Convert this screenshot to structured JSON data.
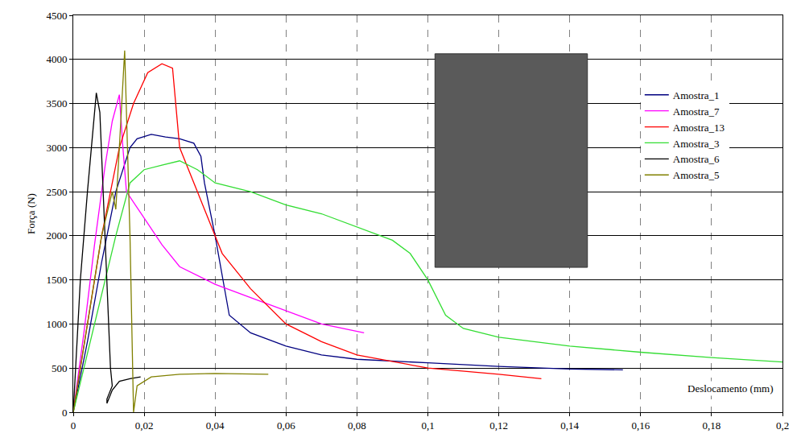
{
  "chart_data": {
    "type": "line",
    "x_label": "Deslocamento (mm)",
    "y_label": "Força (N)",
    "xlim": [
      0,
      0.2
    ],
    "ylim": [
      0,
      4500
    ],
    "xticks": [
      0,
      {
        "value": 0.02,
        "label": "0,02"
      },
      {
        "value": 0.04,
        "label": "0,04"
      },
      {
        "value": 0.06,
        "label": "0,06"
      },
      {
        "value": 0.08,
        "label": "0,08"
      },
      {
        "value": 0.1,
        "label": "0,1"
      },
      {
        "value": 0.12,
        "label": "0,12"
      },
      {
        "value": 0.14,
        "label": "0,14"
      },
      {
        "value": 0.16,
        "label": "0,16"
      },
      {
        "value": 0.18,
        "label": "0,18"
      },
      {
        "value": 0.2,
        "label": "0,2"
      }
    ],
    "yticks": [
      0,
      500,
      1000,
      1500,
      2000,
      2500,
      3000,
      3500,
      4000,
      4500
    ],
    "grid": true,
    "legend": "upper right",
    "series": [
      {
        "name": "Amostra_1",
        "color": "#000080",
        "x": [
          0,
          0.004,
          0.008,
          0.012,
          0.016,
          0.018,
          0.022,
          0.026,
          0.03,
          0.034,
          0.036,
          0.037,
          0.04,
          0.044,
          0.05,
          0.06,
          0.07,
          0.08,
          0.1,
          0.12,
          0.14,
          0.155
        ],
        "values": [
          0,
          800,
          1700,
          2500,
          3000,
          3100,
          3150,
          3120,
          3100,
          3050,
          2900,
          2600,
          2000,
          1100,
          900,
          750,
          650,
          600,
          560,
          520,
          490,
          480
        ]
      },
      {
        "name": "Amostra_7",
        "color": "#ff00ff",
        "x": [
          0,
          0.003,
          0.006,
          0.009,
          0.011,
          0.013,
          0.014,
          0.015,
          0.02,
          0.025,
          0.03,
          0.04,
          0.05,
          0.06,
          0.07,
          0.082
        ],
        "values": [
          0,
          900,
          1900,
          2800,
          3300,
          3600,
          3000,
          2500,
          2200,
          1900,
          1650,
          1450,
          1300,
          1150,
          1000,
          900
        ]
      },
      {
        "name": "Amostra_13",
        "color": "#ff0000",
        "x": [
          0,
          0.004,
          0.008,
          0.013,
          0.017,
          0.021,
          0.025,
          0.028,
          0.03,
          0.035,
          0.042,
          0.05,
          0.06,
          0.07,
          0.08,
          0.1,
          0.12,
          0.132
        ],
        "values": [
          0,
          1000,
          2000,
          3000,
          3500,
          3850,
          3950,
          3900,
          3000,
          2500,
          1800,
          1400,
          1000,
          800,
          650,
          500,
          430,
          380
        ]
      },
      {
        "name": "Amostra_3",
        "color": "#33dd33",
        "x": [
          0,
          0.006,
          0.012,
          0.016,
          0.02,
          0.025,
          0.03,
          0.035,
          0.04,
          0.05,
          0.06,
          0.07,
          0.08,
          0.09,
          0.095,
          0.1,
          0.105,
          0.11,
          0.12,
          0.14,
          0.16,
          0.18,
          0.2
        ],
        "values": [
          0,
          1000,
          2000,
          2600,
          2750,
          2800,
          2850,
          2750,
          2600,
          2500,
          2350,
          2250,
          2100,
          1950,
          1800,
          1500,
          1100,
          950,
          850,
          750,
          680,
          620,
          570
        ]
      },
      {
        "name": "Amostra_6",
        "color": "#000000",
        "x": [
          0,
          0.002,
          0.004,
          0.0065,
          0.0075,
          0.009,
          0.0105,
          0.011,
          0.0095,
          0.0095,
          0.011,
          0.013,
          0.016,
          0.019
        ],
        "values": [
          0,
          1500,
          2500,
          3620,
          3400,
          2000,
          500,
          300,
          150,
          100,
          250,
          350,
          380,
          400
        ]
      },
      {
        "name": "Amostra_5",
        "color": "#808000",
        "x": [
          0,
          0.004,
          0.008,
          0.011,
          0.012,
          0.013,
          0.0145,
          0.016,
          0.017,
          0.018,
          0.022,
          0.03,
          0.04,
          0.055
        ],
        "values": [
          0,
          1000,
          2000,
          2500,
          2300,
          3000,
          4100,
          2000,
          0,
          300,
          400,
          430,
          440,
          430
        ]
      }
    ]
  }
}
